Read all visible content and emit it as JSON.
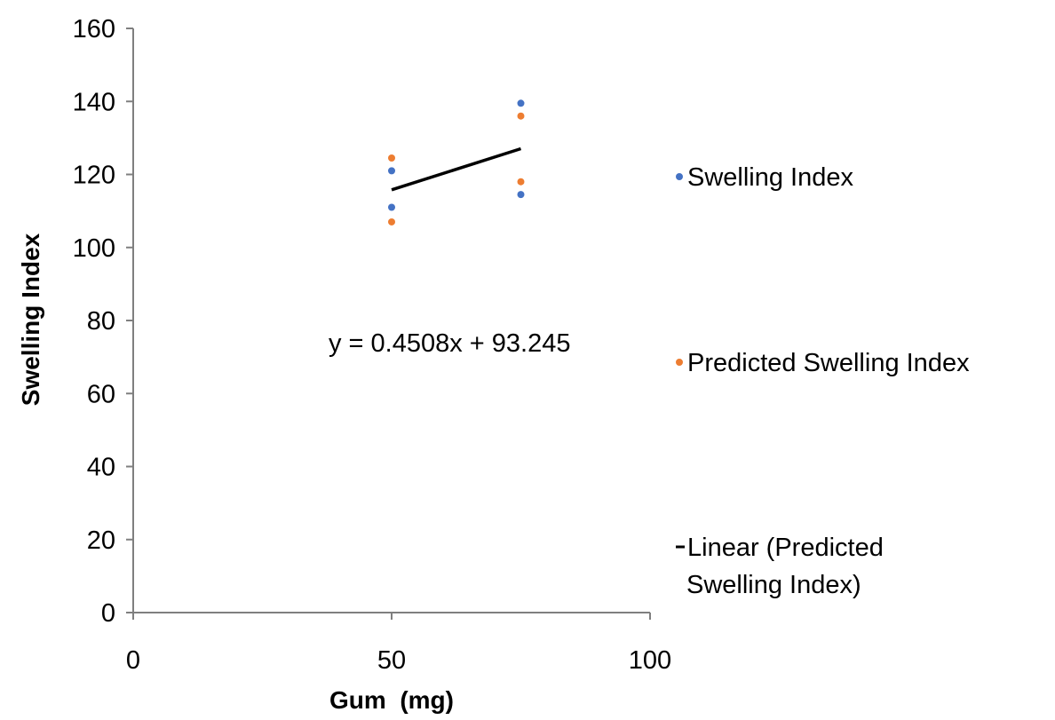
{
  "chart_data": {
    "type": "scatter",
    "title": "",
    "xlabel": "Gum  (mg)",
    "ylabel": "Swelling Index",
    "xlim": [
      0,
      100
    ],
    "ylim": [
      0,
      160
    ],
    "x_ticks": [
      0,
      50,
      100
    ],
    "y_ticks": [
      0,
      20,
      40,
      60,
      80,
      100,
      120,
      140,
      160
    ],
    "grid": false,
    "legend_position": "right",
    "series": [
      {
        "name": "Swelling Index",
        "color": "#4472C4",
        "points": [
          [
            50,
            121
          ],
          [
            50,
            111
          ],
          [
            75,
            139.5
          ],
          [
            75,
            114.5
          ]
        ]
      },
      {
        "name": "Predicted Swelling Index",
        "color": "#ED7D31",
        "points": [
          [
            50,
            124.5
          ],
          [
            50,
            107
          ],
          [
            75,
            136
          ],
          [
            75,
            118
          ]
        ]
      }
    ],
    "trendline": {
      "name": "Linear (Predicted Swelling Index)",
      "legend_lines": [
        "Linear (Predicted",
        "Swelling Index)"
      ],
      "color": "#000000",
      "slope": 0.4508,
      "intercept": 93.245,
      "x_range": [
        50,
        75
      ],
      "equation": "y = 0.4508x + 93.245"
    }
  }
}
